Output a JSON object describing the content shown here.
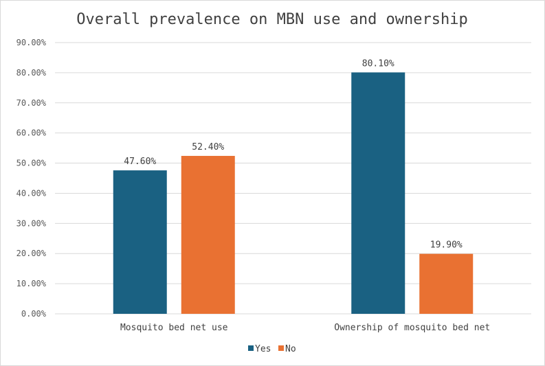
{
  "chart_data": {
    "type": "bar",
    "title": "Overall prevalence on MBN use and ownership",
    "categories": [
      "Mosquito bed net use",
      "Ownership of mosquito bed net"
    ],
    "series": [
      {
        "name": "Yes",
        "color": "#1a6182",
        "values": [
          47.6,
          80.1
        ],
        "labels": [
          "47.60%",
          "80.10%"
        ]
      },
      {
        "name": "No",
        "color": "#e97132",
        "values": [
          52.4,
          19.9
        ],
        "labels": [
          "52.40%",
          "19.90%"
        ]
      }
    ],
    "ylim": [
      0,
      90
    ],
    "yticks": [
      0,
      10,
      20,
      30,
      40,
      50,
      60,
      70,
      80,
      90
    ],
    "ytick_labels": [
      "0.00%",
      "10.00%",
      "20.00%",
      "30.00%",
      "40.00%",
      "50.00%",
      "60.00%",
      "70.00%",
      "80.00%",
      "90.00%"
    ],
    "xlabel": "",
    "ylabel": "",
    "grid": true,
    "legend_position": "bottom"
  }
}
